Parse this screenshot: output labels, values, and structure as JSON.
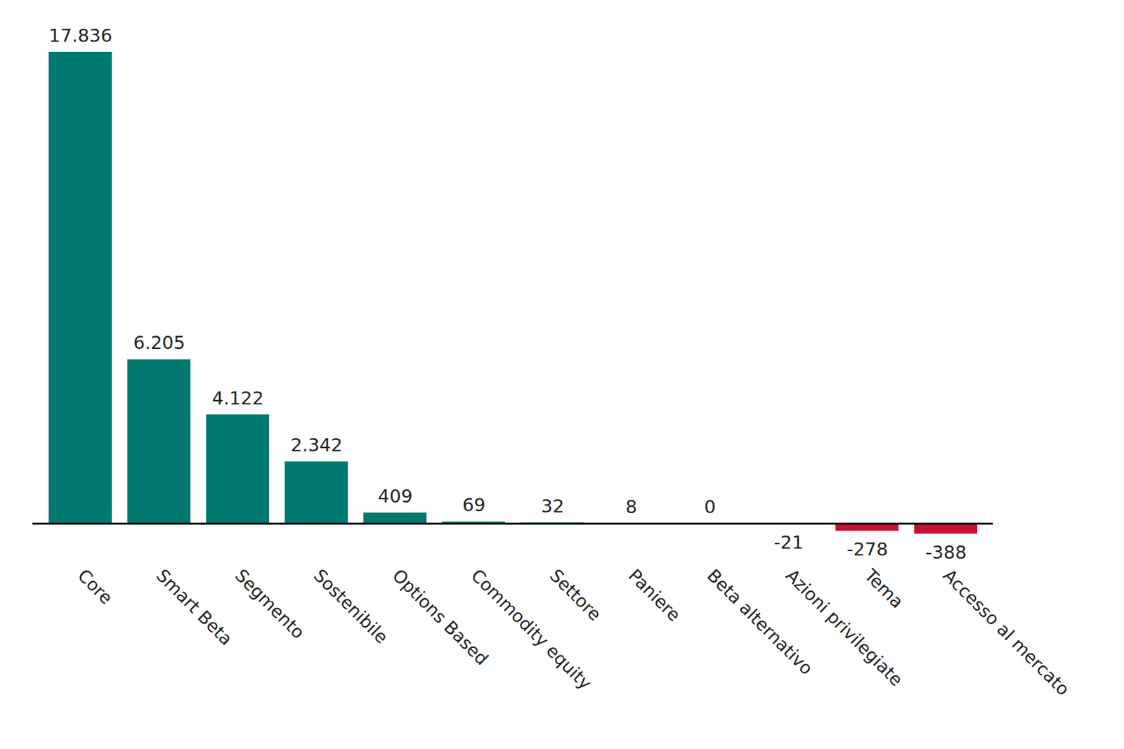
{
  "chart_data": {
    "type": "bar",
    "categories": [
      "Core",
      "Smart Beta",
      "Segmento",
      "Sostenibile",
      "Options Based",
      "Commodity equity",
      "Settore",
      "Paniere",
      "Beta alternativo",
      "Azioni privilegiate",
      "Tema",
      "Accesso al mercato"
    ],
    "values": [
      17836,
      6205,
      4122,
      2342,
      409,
      69,
      32,
      8,
      0,
      -21,
      -278,
      -388
    ],
    "value_labels": [
      "17.836",
      "6.205",
      "4.122",
      "2.342",
      "409",
      "69",
      "32",
      "8",
      "0",
      "-21",
      "-278",
      "-388"
    ],
    "colors": [
      "#007a70",
      "#007a70",
      "#007a70",
      "#007a70",
      "#007a70",
      "#007a70",
      "#007a70",
      "#007a70",
      "#007a70",
      "#c8102e",
      "#c8102e",
      "#c8102e"
    ],
    "ylim": [
      -388,
      17836
    ],
    "data_labels": true,
    "tick_labels": "x"
  }
}
